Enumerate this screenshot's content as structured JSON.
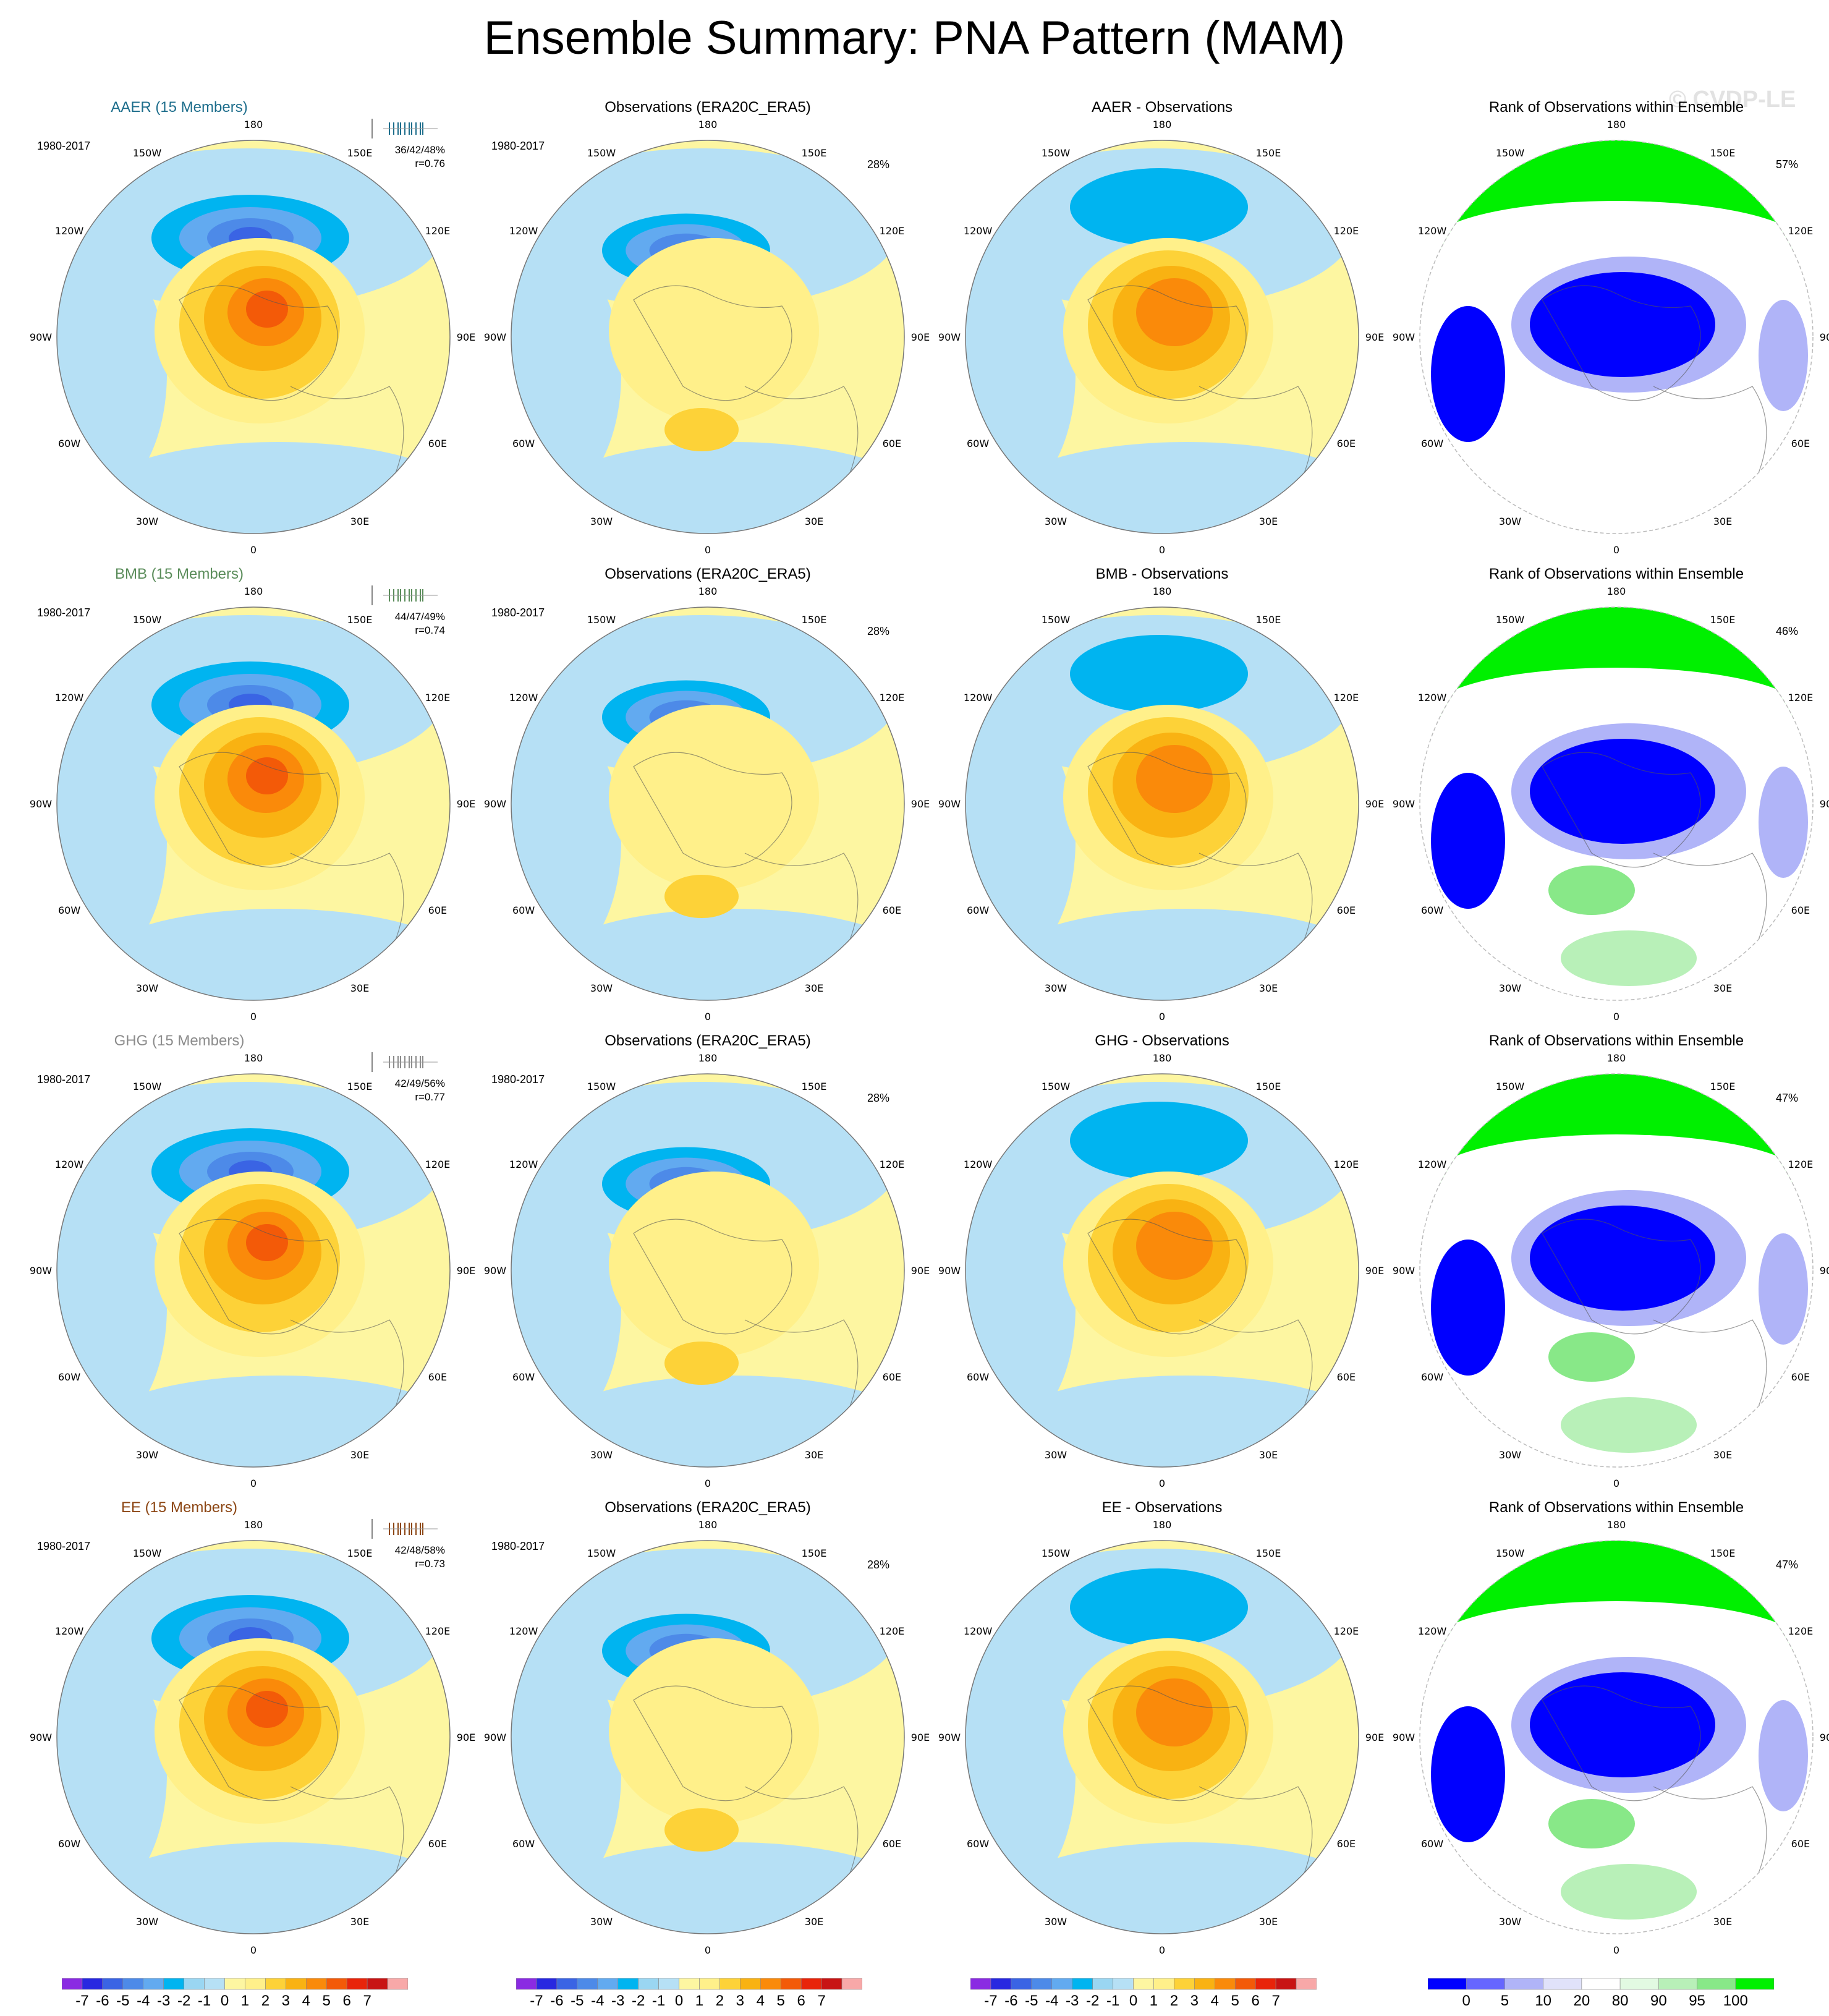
{
  "title": "Ensemble Summary: PNA Pattern (MAM)",
  "watermark": "© CVDP-LE",
  "period": "1980-2017",
  "lon_labels": [
    "180",
    "150E",
    "120E",
    "90E",
    "60E",
    "30E",
    "0",
    "30W",
    "60W",
    "90W",
    "120W",
    "150W"
  ],
  "colors": {
    "pattern": [
      "#8a2be2",
      "#2828e0",
      "#3a64e4",
      "#4d8ae8",
      "#62aaf0",
      "#00b4f0",
      "#9ad6f2",
      "#b6e0f5",
      "#fdf6a1",
      "#fff08a",
      "#fdd238",
      "#f9b212",
      "#fa8a0a",
      "#f35a08",
      "#e8240a",
      "#c81414",
      "#f8a8a8"
    ],
    "rank": [
      "#0000ff",
      "#6666ff",
      "#b0b4f8",
      "#e0e2fa",
      "#ffffff",
      "#e2fae2",
      "#b8f0b8",
      "#88e888",
      "#00f000"
    ]
  },
  "colorbar_hpa": {
    "labels": [
      "-7",
      "-6",
      "-5",
      "-4",
      "-3",
      "-2",
      "-1",
      "0",
      "1",
      "2",
      "3",
      "4",
      "5",
      "6",
      "7"
    ],
    "units": "hPa"
  },
  "colorbar_rank": {
    "labels": [
      "0",
      "5",
      "10",
      "20",
      "80",
      "90",
      "95",
      "100"
    ],
    "units": "%"
  },
  "rows": [
    {
      "model": "AAER",
      "members": "AAER (15 Members)",
      "model_color": "#1e6e8c",
      "stats": "36/42/48%",
      "r": "r=0.76",
      "obs_title": "Observations (ERA20C_ERA5)",
      "obs_pct": "28%",
      "diff_title": "AAER - Observations",
      "rank_title": "Rank of Observations within Ensemble",
      "rank_pct": "57%"
    },
    {
      "model": "BMB",
      "members": "BMB (15 Members)",
      "model_color": "#5a8c5a",
      "stats": "44/47/49%",
      "r": "r=0.74",
      "obs_title": "Observations (ERA20C_ERA5)",
      "obs_pct": "28%",
      "diff_title": "BMB - Observations",
      "rank_title": "Rank of Observations within Ensemble",
      "rank_pct": "46%"
    },
    {
      "model": "GHG",
      "members": "GHG (15 Members)",
      "model_color": "#8c8c8c",
      "stats": "42/49/56%",
      "r": "r=0.77",
      "obs_title": "Observations (ERA20C_ERA5)",
      "obs_pct": "28%",
      "diff_title": "GHG - Observations",
      "rank_title": "Rank of Observations within Ensemble",
      "rank_pct": "47%"
    },
    {
      "model": "EE",
      "members": "EE (15 Members)",
      "model_color": "#8c4614",
      "stats": "42/48/58%",
      "r": "r=0.73",
      "obs_title": "Observations (ERA20C_ERA5)",
      "obs_pct": "28%",
      "diff_title": "EE - Observations",
      "rank_title": "Rank of Observations within Ensemble",
      "rank_pct": "47%"
    }
  ],
  "chart_data": [
    {
      "type": "heatmap",
      "panel": "ensemble mean PNA pattern",
      "units": "hPa",
      "models": [
        "AAER",
        "BMB",
        "GHG",
        "EE"
      ]
    },
    {
      "type": "heatmap",
      "panel": "observed PNA pattern",
      "units": "hPa"
    },
    {
      "type": "heatmap",
      "panel": "model minus observations",
      "units": "hPa"
    },
    {
      "type": "heatmap",
      "panel": "rank of observations within ensemble",
      "units": "%"
    }
  ]
}
